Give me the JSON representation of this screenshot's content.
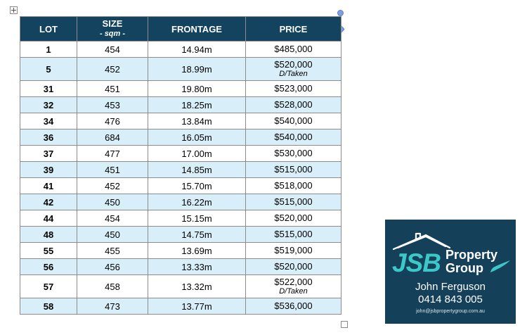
{
  "table": {
    "headers": {
      "lot": "LOT",
      "size": "SIZE",
      "size_unit": "- sqm -",
      "frontage": "FRONTAGE",
      "price": "PRICE"
    },
    "rows": [
      {
        "lot": "1",
        "size": "454",
        "frontage": "14.94m",
        "price": "$485,000",
        "note": ""
      },
      {
        "lot": "5",
        "size": "452",
        "frontage": "18.99m",
        "price": "$520,000",
        "note": "D/Taken"
      },
      {
        "lot": "31",
        "size": "451",
        "frontage": "19.80m",
        "price": "$523,000",
        "note": ""
      },
      {
        "lot": "32",
        "size": "453",
        "frontage": "18.25m",
        "price": "$528,000",
        "note": ""
      },
      {
        "lot": "34",
        "size": "476",
        "frontage": "13.84m",
        "price": "$540,000",
        "note": ""
      },
      {
        "lot": "36",
        "size": "684",
        "frontage": "16.05m",
        "price": "$540,000",
        "note": ""
      },
      {
        "lot": "37",
        "size": "477",
        "frontage": "17.00m",
        "price": "$530,000",
        "note": ""
      },
      {
        "lot": "39",
        "size": "451",
        "frontage": "14.85m",
        "price": "$515,000",
        "note": ""
      },
      {
        "lot": "41",
        "size": "452",
        "frontage": "15.70m",
        "price": "$518,000",
        "note": ""
      },
      {
        "lot": "42",
        "size": "450",
        "frontage": "16.22m",
        "price": "$515,000",
        "note": ""
      },
      {
        "lot": "44",
        "size": "454",
        "frontage": "15.15m",
        "price": "$520,000",
        "note": ""
      },
      {
        "lot": "48",
        "size": "450",
        "frontage": "14.75m",
        "price": "$515,000",
        "note": ""
      },
      {
        "lot": "55",
        "size": "455",
        "frontage": "13.69m",
        "price": "$519,000",
        "note": ""
      },
      {
        "lot": "56",
        "size": "456",
        "frontage": "13.33m",
        "price": "$520,000",
        "note": ""
      },
      {
        "lot": "57",
        "size": "458",
        "frontage": "13.32m",
        "price": "$522,000",
        "note": "D/Taken"
      },
      {
        "lot": "58",
        "size": "473",
        "frontage": "13.77m",
        "price": "$536,000",
        "note": ""
      }
    ]
  },
  "card": {
    "brand": "JSB",
    "brand_word1": "Property",
    "brand_word2": "Group",
    "agent_name": "John Ferguson",
    "agent_phone": "0414 843 005",
    "agent_email": "john@jsbpropertygroup.com.au"
  },
  "colors": {
    "header_bg": "#13435f",
    "row_alt_bg": "#d8eef8",
    "card_bg": "#14405a",
    "brand_teal": "#3cc7c9"
  },
  "icons": {
    "move_handle": "table-move-handle-icon",
    "resize_handle": "table-resize-handle-icon",
    "house_roof": "house-roof-icon"
  }
}
